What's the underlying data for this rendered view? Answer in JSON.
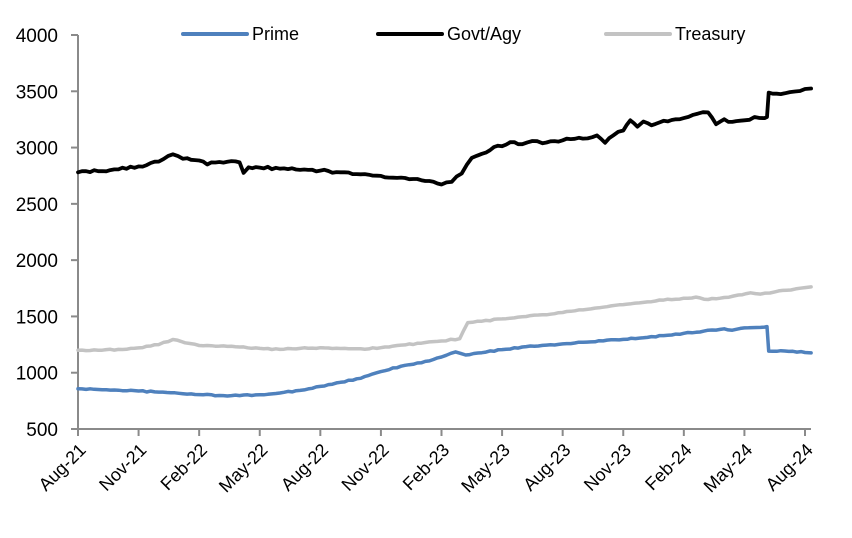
{
  "chart_data": {
    "type": "line",
    "title": "",
    "legend_position": "top",
    "grid": false,
    "axis_color": "#8a8a8a",
    "ylim": [
      500,
      4000
    ],
    "y_ticks": [
      500,
      1000,
      1500,
      2000,
      2500,
      3000,
      3500,
      4000
    ],
    "x_tick_labels": [
      "Aug-21",
      "Nov-21",
      "Feb-22",
      "May-22",
      "Aug-22",
      "Nov-22",
      "Feb-23",
      "May-23",
      "Aug-23",
      "Nov-23",
      "Feb-24",
      "May-24",
      "Aug-24"
    ],
    "x_unit": "month offset: 0 = Aug-2021, 36 = Aug-2024",
    "x_range_months": 36,
    "series": [
      {
        "name": "Prime",
        "color": "#4f81bd",
        "points": [
          [
            0,
            857
          ],
          [
            1,
            851
          ],
          [
            2,
            845
          ],
          [
            3,
            838
          ],
          [
            4,
            828
          ],
          [
            5,
            817
          ],
          [
            6,
            806
          ],
          [
            7,
            798
          ],
          [
            8,
            797
          ],
          [
            9,
            804
          ],
          [
            10,
            820
          ],
          [
            11,
            843
          ],
          [
            12,
            878
          ],
          [
            13,
            915
          ],
          [
            14,
            950
          ],
          [
            15,
            1010
          ],
          [
            16,
            1058
          ],
          [
            17,
            1088
          ],
          [
            18,
            1140
          ],
          [
            18.7,
            1185
          ],
          [
            19.2,
            1157
          ],
          [
            20,
            1178
          ],
          [
            21,
            1205
          ],
          [
            22,
            1228
          ],
          [
            23,
            1243
          ],
          [
            24,
            1256
          ],
          [
            25,
            1270
          ],
          [
            26,
            1283
          ],
          [
            27,
            1296
          ],
          [
            28,
            1310
          ],
          [
            29,
            1330
          ],
          [
            30,
            1350
          ],
          [
            31,
            1370
          ],
          [
            32,
            1390
          ],
          [
            32.4,
            1378
          ],
          [
            33,
            1398
          ],
          [
            34,
            1405
          ],
          [
            34.12,
            1410
          ],
          [
            34.2,
            1192
          ],
          [
            35,
            1193
          ],
          [
            36,
            1180
          ],
          [
            36.3,
            1176
          ]
        ]
      },
      {
        "name": "Govt/Agy",
        "color": "#000000",
        "points": [
          [
            0,
            2780
          ],
          [
            1,
            2790
          ],
          [
            2,
            2806
          ],
          [
            3,
            2833
          ],
          [
            4,
            2875
          ],
          [
            4.7,
            2940
          ],
          [
            5.2,
            2900
          ],
          [
            6,
            2885
          ],
          [
            6.4,
            2850
          ],
          [
            7,
            2872
          ],
          [
            7.6,
            2880
          ],
          [
            8,
            2868
          ],
          [
            8.2,
            2775
          ],
          [
            8.45,
            2825
          ],
          [
            9,
            2822
          ],
          [
            10,
            2812
          ],
          [
            11,
            2802
          ],
          [
            12,
            2795
          ],
          [
            13,
            2780
          ],
          [
            14,
            2763
          ],
          [
            15,
            2748
          ],
          [
            16,
            2733
          ],
          [
            17,
            2710
          ],
          [
            18,
            2672
          ],
          [
            18.5,
            2695
          ],
          [
            19,
            2770
          ],
          [
            19.5,
            2908
          ],
          [
            20,
            2945
          ],
          [
            20.6,
            3005
          ],
          [
            21,
            3012
          ],
          [
            21.4,
            3048
          ],
          [
            22,
            3030
          ],
          [
            22.5,
            3058
          ],
          [
            23,
            3038
          ],
          [
            24,
            3065
          ],
          [
            25,
            3080
          ],
          [
            25.7,
            3108
          ],
          [
            26.1,
            3042
          ],
          [
            26.5,
            3108
          ],
          [
            27,
            3152
          ],
          [
            27.35,
            3242
          ],
          [
            27.7,
            3185
          ],
          [
            28,
            3232
          ],
          [
            28.4,
            3198
          ],
          [
            29,
            3238
          ],
          [
            30,
            3262
          ],
          [
            30.7,
            3302
          ],
          [
            31.2,
            3312
          ],
          [
            31.6,
            3208
          ],
          [
            32,
            3252
          ],
          [
            32.4,
            3228
          ],
          [
            33,
            3242
          ],
          [
            33.5,
            3272
          ],
          [
            34,
            3262
          ],
          [
            34.12,
            3272
          ],
          [
            34.2,
            3488
          ],
          [
            35,
            3482
          ],
          [
            35.5,
            3498
          ],
          [
            36,
            3520
          ],
          [
            36.3,
            3525
          ]
        ]
      },
      {
        "name": "Treasury",
        "color": "#c3c3c3",
        "points": [
          [
            0,
            1200
          ],
          [
            1,
            1200
          ],
          [
            2,
            1207
          ],
          [
            3,
            1220
          ],
          [
            4,
            1250
          ],
          [
            4.7,
            1295
          ],
          [
            5.5,
            1260
          ],
          [
            6,
            1242
          ],
          [
            7,
            1236
          ],
          [
            8,
            1228
          ],
          [
            9,
            1216
          ],
          [
            10,
            1207
          ],
          [
            11,
            1216
          ],
          [
            12,
            1222
          ],
          [
            13,
            1215
          ],
          [
            14,
            1212
          ],
          [
            15,
            1222
          ],
          [
            16,
            1245
          ],
          [
            17,
            1262
          ],
          [
            18,
            1282
          ],
          [
            18.9,
            1302
          ],
          [
            19.3,
            1445
          ],
          [
            20,
            1458
          ],
          [
            21,
            1478
          ],
          [
            22,
            1498
          ],
          [
            23,
            1515
          ],
          [
            24,
            1535
          ],
          [
            25,
            1558
          ],
          [
            26,
            1582
          ],
          [
            27,
            1605
          ],
          [
            28,
            1625
          ],
          [
            29,
            1645
          ],
          [
            30,
            1662
          ],
          [
            30.6,
            1672
          ],
          [
            31.2,
            1650
          ],
          [
            32,
            1668
          ],
          [
            32.7,
            1690
          ],
          [
            33.3,
            1710
          ],
          [
            33.8,
            1698
          ],
          [
            34.5,
            1718
          ],
          [
            35.3,
            1735
          ],
          [
            36,
            1756
          ],
          [
            36.3,
            1762
          ]
        ]
      }
    ]
  }
}
